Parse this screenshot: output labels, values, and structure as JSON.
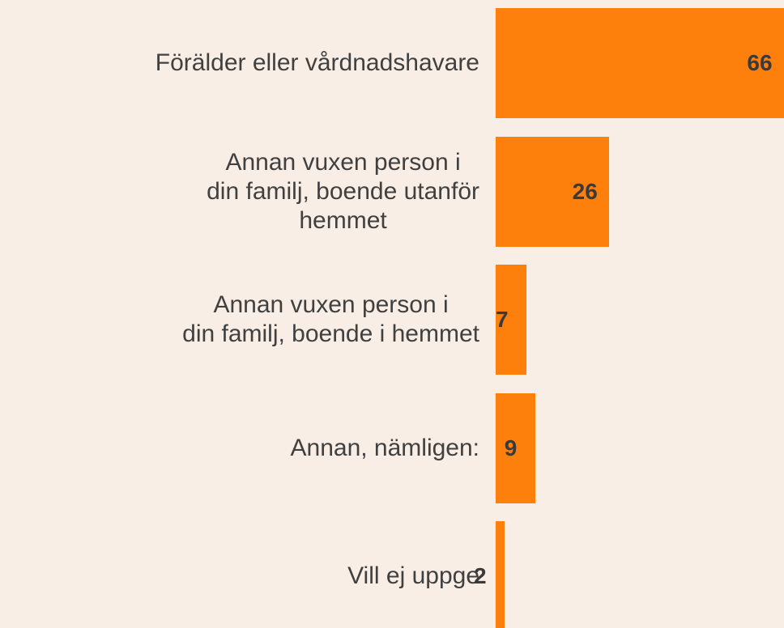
{
  "chart_data": {
    "type": "bar",
    "orientation": "horizontal",
    "categories": [
      "Förälder eller vårdnadshavare",
      "Annan vuxen person i\ndin familj, boende utanför\nhemmet",
      "Annan vuxen person i\ndin familj, boende i hemmet",
      "Annan, nämligen:",
      "Vill ej uppge"
    ],
    "values": [
      66,
      26,
      7,
      9,
      2
    ],
    "color": "#fd7f0c"
  }
}
